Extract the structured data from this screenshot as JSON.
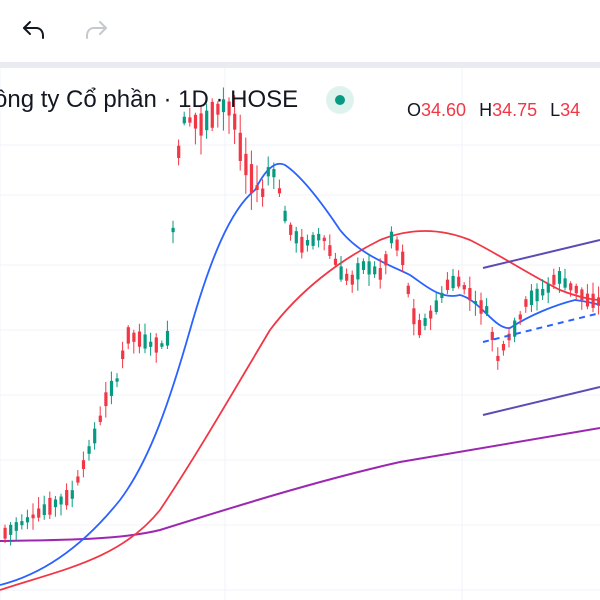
{
  "toolbar": {
    "undo_icon": "undo-arrow-icon",
    "redo_icon": "redo-arrow-icon"
  },
  "legend": {
    "title": "ông ty Cổ phần · 1D · HOSE",
    "status_color": "#089981",
    "ohlc": {
      "o_label": "O",
      "o_value": "34.60",
      "h_label": "H",
      "h_value": "34.75",
      "l_label": "L",
      "l_value": "34"
    }
  },
  "chart_data": {
    "type": "candlestick",
    "grid": true,
    "colors": {
      "up": "#089981",
      "down": "#f23645",
      "ma_fast": "#2962ff",
      "ma_mid": "#f23645",
      "ma_slow": "#9c27b0",
      "channel": "#5b4bb4"
    }
  }
}
